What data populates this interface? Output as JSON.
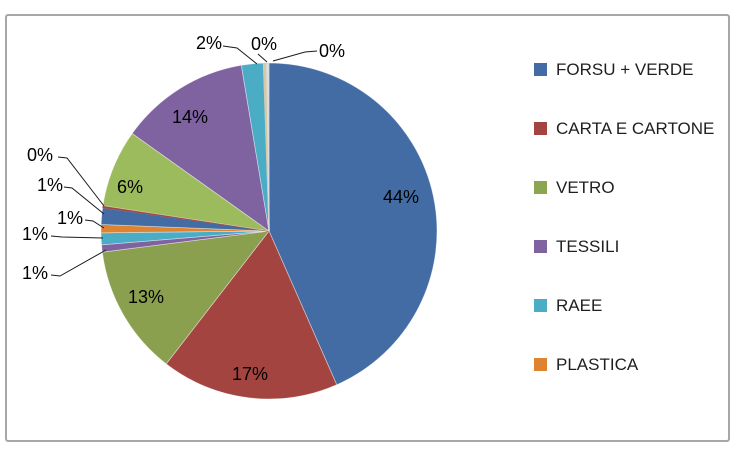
{
  "chart_data": {
    "type": "pie",
    "title": "",
    "direction": "clockwise",
    "start_angle_deg": 0,
    "legend_position": "right",
    "slices": [
      {
        "label": "44%",
        "value": 44,
        "color": "#426CA3"
      },
      {
        "label": "17%",
        "value": 17,
        "color": "#A34440"
      },
      {
        "label": "13%",
        "value": 13,
        "color": "#8AA04F"
      },
      {
        "label": "1%",
        "value": 1,
        "color": "#7F63A1"
      },
      {
        "label": "1%",
        "value": 1,
        "color": "#4AACC5"
      },
      {
        "label": "1%",
        "value": 1,
        "color": "#DE8330"
      },
      {
        "label": "1%",
        "value": 1,
        "color": "#426CA3"
      },
      {
        "label": "0%",
        "value": 0,
        "color": "#A34440"
      },
      {
        "label": "6%",
        "value": 6,
        "color": "#9CBB5D"
      },
      {
        "label": "14%",
        "value": 14,
        "color": "#7F63A1"
      },
      {
        "label": "2%",
        "value": 2,
        "color": "#4AACC5"
      },
      {
        "label": "0%",
        "value": 0,
        "color": "#D5C8A4"
      },
      {
        "label": "0%",
        "value": 0,
        "color": "#D9DCE1"
      }
    ],
    "legend": {
      "items": [
        {
          "label": "FORSU + VERDE",
          "color": "#426CA3"
        },
        {
          "label": "CARTA E CARTONE",
          "color": "#A34440"
        },
        {
          "label": "VETRO",
          "color": "#8CA551"
        },
        {
          "label": "TESSILI",
          "color": "#7F63A1"
        },
        {
          "label": "RAEE",
          "color": "#4AACC5"
        },
        {
          "label": "PLASTICA",
          "color": "#DE8330"
        }
      ]
    }
  }
}
